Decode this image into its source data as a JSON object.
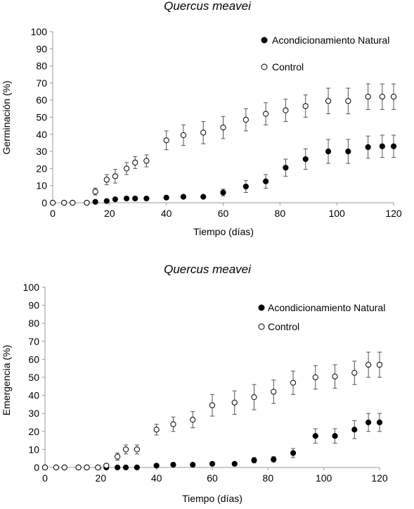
{
  "chart_data": [
    {
      "type": "scatter",
      "title": "Quercus meavei",
      "xlabel": "Tiempo (días)",
      "ylabel": "Germinación (%)",
      "xlim": [
        0,
        120
      ],
      "ylim": [
        0,
        100
      ],
      "xticks": [
        "0",
        "20",
        "40",
        "60",
        "80",
        "100",
        "120"
      ],
      "yticks": [
        "0",
        "10",
        "20",
        "30",
        "40",
        "50",
        "60",
        "70",
        "80",
        "90",
        "100"
      ],
      "grid": false,
      "legend_position": "top-right",
      "series": [
        {
          "name": "Acondicionamiento Natural",
          "marker": "filled-circle",
          "color": "#000000",
          "x": [
            0,
            4,
            7,
            12,
            15,
            19,
            22,
            26,
            29,
            33,
            40,
            46,
            53,
            60,
            68,
            75,
            82,
            89,
            97,
            104,
            111,
            116,
            120
          ],
          "y": [
            0,
            0,
            0,
            0,
            0.5,
            1,
            2,
            2.5,
            2.5,
            2.5,
            3,
            3.5,
            3.5,
            6,
            9.5,
            12.5,
            20.5,
            25.5,
            30,
            30,
            32.5,
            33,
            33
          ],
          "error": [
            0,
            0,
            0,
            0,
            0,
            0,
            0,
            0,
            0,
            0,
            0,
            0,
            0,
            2,
            3.5,
            4,
            5,
            6,
            7,
            7,
            6.5,
            6.5,
            6.5
          ]
        },
        {
          "name": "Control",
          "marker": "open-circle",
          "color": "#000000",
          "x": [
            0,
            4,
            7,
            12,
            15,
            19,
            22,
            26,
            29,
            33,
            40,
            46,
            53,
            60,
            68,
            75,
            82,
            89,
            97,
            104,
            111,
            116,
            120
          ],
          "y": [
            0,
            0,
            0,
            0,
            6.5,
            13.5,
            15.5,
            20,
            23.5,
            24.5,
            36.5,
            39.5,
            41,
            44,
            48.5,
            52,
            54,
            56.5,
            59.5,
            59.5,
            62,
            62,
            62
          ],
          "error": [
            0,
            0,
            0,
            0,
            2,
            3,
            4,
            3.5,
            3.5,
            3.5,
            5.5,
            6,
            6.5,
            6.5,
            6.5,
            6.5,
            6.5,
            6.5,
            7.5,
            7.5,
            7.5,
            7.5,
            7.5
          ]
        }
      ]
    },
    {
      "type": "scatter",
      "title": "Quercus meavei",
      "xlabel": "Tiempo (días)",
      "ylabel": "Emergencia (%)",
      "xlim": [
        0,
        120
      ],
      "ylim": [
        0,
        100
      ],
      "xticks": [
        "0",
        "20",
        "40",
        "60",
        "80",
        "100",
        "120"
      ],
      "yticks": [
        "0",
        "10",
        "20",
        "30",
        "40",
        "50",
        "60",
        "70",
        "80",
        "90",
        "100"
      ],
      "grid": false,
      "legend_position": "top-right",
      "series": [
        {
          "name": "Acondicionamiento Natural",
          "marker": "filled-circle",
          "color": "#000000",
          "x": [
            0,
            4,
            7,
            12,
            15,
            19,
            22,
            26,
            29,
            33,
            40,
            46,
            53,
            60,
            68,
            75,
            82,
            89,
            97,
            104,
            111,
            116,
            120
          ],
          "y": [
            0,
            0,
            0,
            0,
            0,
            0,
            0,
            0,
            0,
            0,
            1,
            1.5,
            1.5,
            2,
            2,
            4,
            4.5,
            8,
            17.5,
            17.5,
            21,
            25,
            25
          ],
          "error": [
            0,
            0,
            0,
            0,
            0,
            0,
            0,
            0,
            0,
            0,
            0,
            0,
            0,
            0,
            0,
            1.5,
            1.5,
            2.5,
            4,
            4,
            5,
            5,
            5
          ]
        },
        {
          "name": "Control",
          "marker": "open-circle",
          "color": "#000000",
          "x": [
            0,
            4,
            7,
            12,
            15,
            19,
            22,
            26,
            29,
            33,
            40,
            46,
            53,
            60,
            68,
            75,
            82,
            89,
            97,
            104,
            111,
            116,
            120
          ],
          "y": [
            0,
            0,
            0,
            0,
            0,
            0,
            1,
            6,
            10,
            10,
            21,
            24,
            26.5,
            34.5,
            36,
            39,
            42,
            47,
            50,
            50.5,
            52.5,
            57,
            57
          ],
          "error": [
            0,
            0,
            0,
            0,
            0,
            0,
            1,
            2,
            2.5,
            2.5,
            3,
            4,
            4.5,
            6,
            6.5,
            7,
            6.5,
            6.5,
            6.5,
            6.5,
            6.5,
            7,
            7
          ]
        }
      ]
    }
  ]
}
